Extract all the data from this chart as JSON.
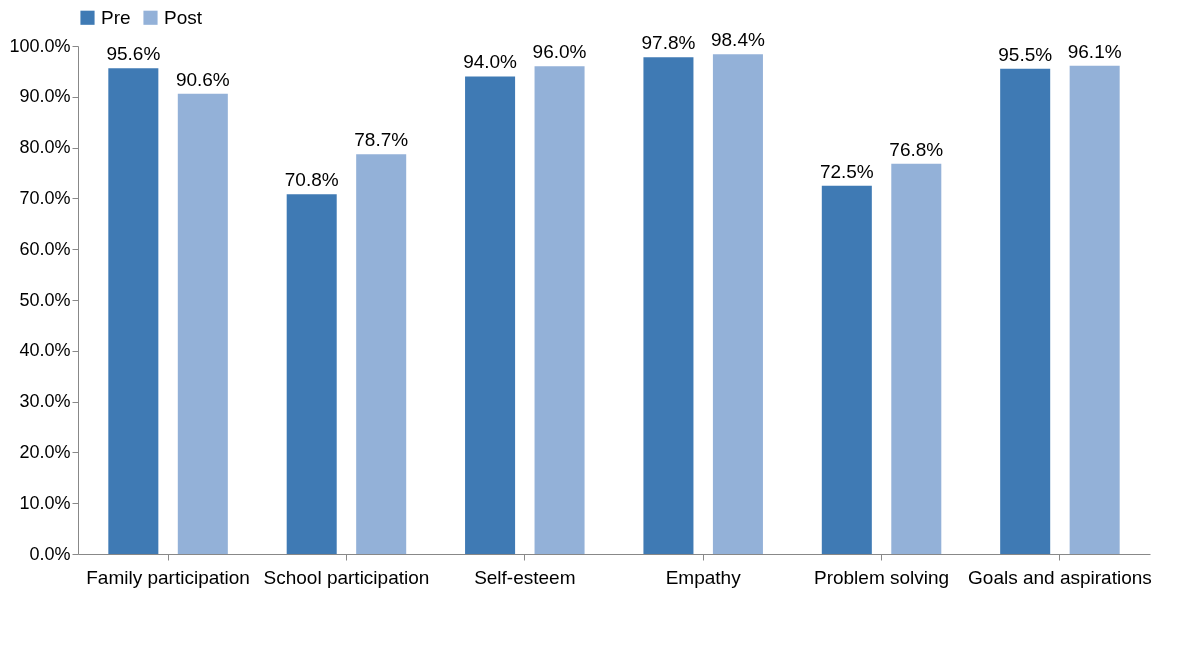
{
  "chart_data": {
    "type": "bar",
    "categories": [
      "Family participation",
      "School participation",
      "Self-esteem",
      "Empathy",
      "Problem solving",
      "Goals and aspirations"
    ],
    "series": [
      {
        "name": "Pre",
        "color": "#3f7ab4",
        "values": [
          95.6,
          70.8,
          94.0,
          97.8,
          72.5,
          95.5
        ],
        "value_labels": [
          "95.6%",
          "70.8%",
          "94.0%",
          "97.8%",
          "72.5%",
          "95.5%"
        ]
      },
      {
        "name": "Post",
        "color": "#93b1d8",
        "values": [
          90.6,
          78.7,
          96.0,
          98.4,
          76.8,
          96.1
        ],
        "value_labels": [
          "90.6%",
          "78.7%",
          "96.0%",
          "98.4%",
          "76.8%",
          "96.1%"
        ]
      }
    ],
    "ylim": [
      0,
      100
    ],
    "yticks": [
      {
        "value": 0,
        "label": "0.0%"
      },
      {
        "value": 10,
        "label": "10.0%"
      },
      {
        "value": 20,
        "label": "20.0%"
      },
      {
        "value": 30,
        "label": "30.0%"
      },
      {
        "value": 40,
        "label": "40.0%"
      },
      {
        "value": 50,
        "label": "50.0%"
      },
      {
        "value": 60,
        "label": "60.0%"
      },
      {
        "value": 70,
        "label": "70.0%"
      },
      {
        "value": 80,
        "label": "80.0%"
      },
      {
        "value": 90,
        "label": "90.0%"
      },
      {
        "value": 100,
        "label": "100.0%"
      }
    ],
    "grid": false,
    "legend": "top"
  }
}
